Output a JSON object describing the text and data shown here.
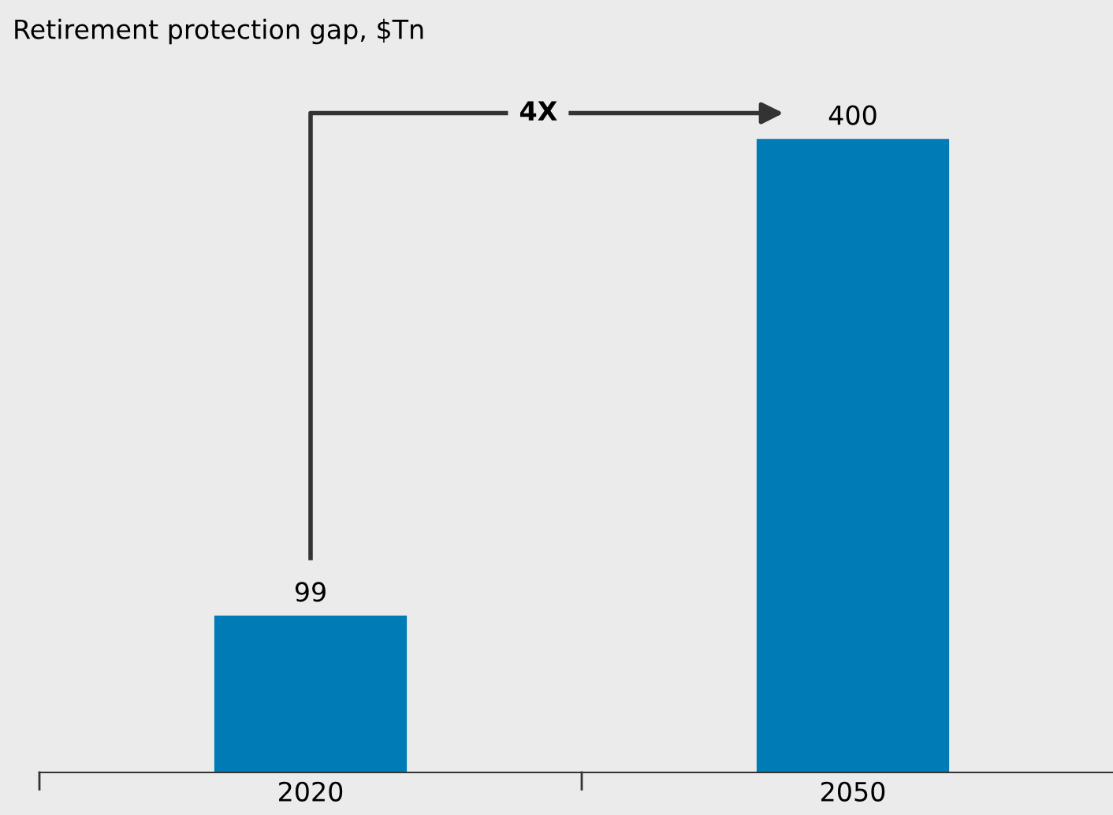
{
  "chart_data": {
    "type": "bar",
    "title": "Retirement protection gap, $Tn",
    "categories": [
      "2020",
      "2050"
    ],
    "values": [
      99,
      400
    ],
    "color": "#007bb5",
    "data_labels": true,
    "grid": false,
    "annotations": [
      "4X"
    ]
  }
}
